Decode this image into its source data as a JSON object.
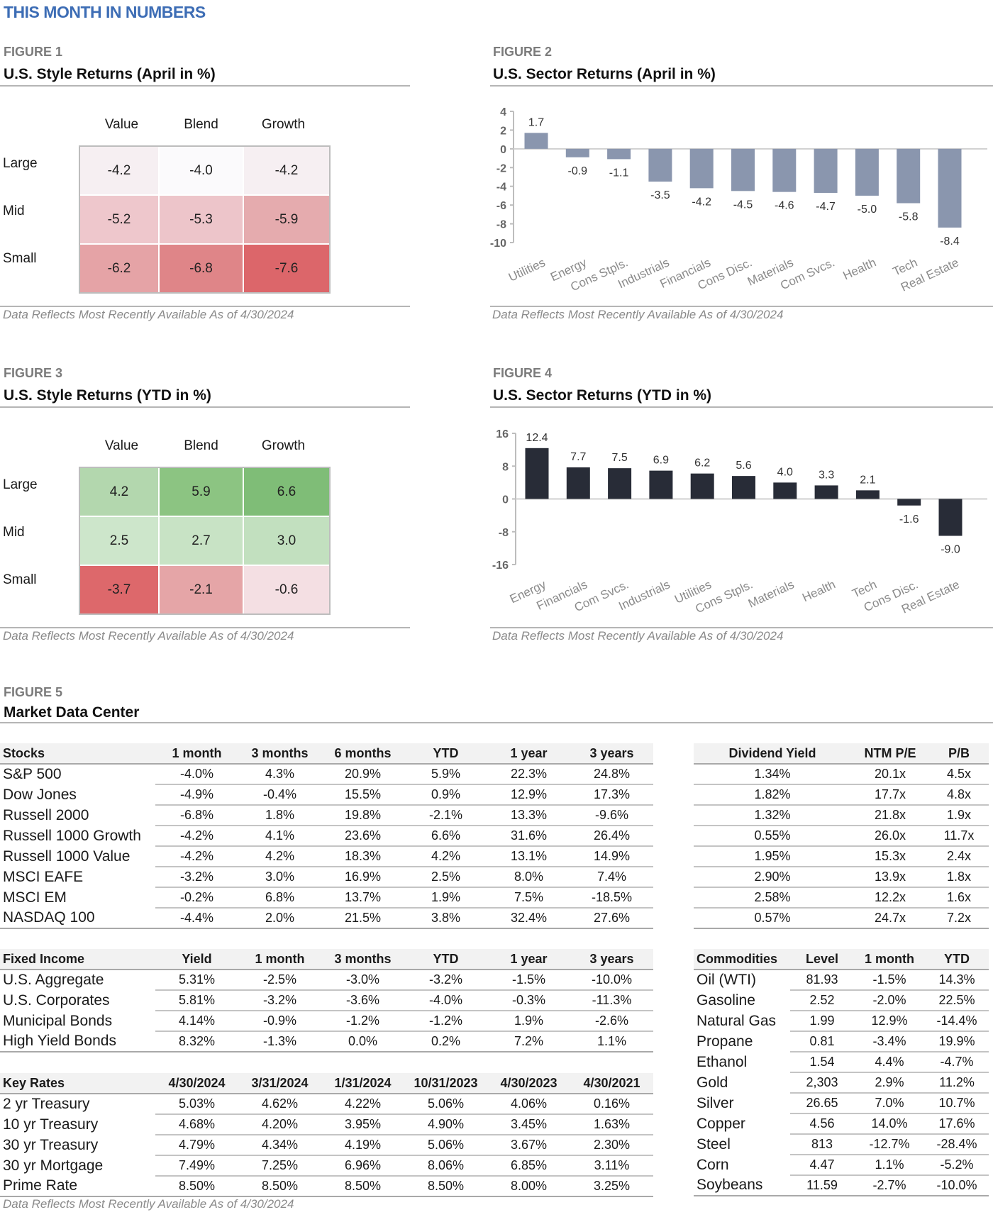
{
  "page_title": "THIS MONTH IN NUMBERS",
  "footnote": "Data Reflects Most Recently Available As of 4/30/2024",
  "figure1": {
    "label": "FIGURE 1",
    "title": "U.S. Style Returns (April in %)",
    "columns": [
      "Value",
      "Blend",
      "Growth"
    ],
    "rows": [
      "Large",
      "Mid",
      "Small"
    ],
    "values": [
      [
        "-4.2",
        "-4.0",
        "-4.2"
      ],
      [
        "-5.2",
        "-5.3",
        "-5.9"
      ],
      [
        "-6.2",
        "-6.8",
        "-7.6"
      ]
    ],
    "colors": [
      [
        "#f6eff2",
        "#fbfafc",
        "#f6eff2"
      ],
      [
        "#eec7cc",
        "#edc5ca",
        "#e5abae"
      ],
      [
        "#e5a3a6",
        "#df8588",
        "#dc666a"
      ]
    ]
  },
  "figure3": {
    "label": "FIGURE 3",
    "title": "U.S. Style Returns (YTD in %)",
    "columns": [
      "Value",
      "Blend",
      "Growth"
    ],
    "rows": [
      "Large",
      "Mid",
      "Small"
    ],
    "values": [
      [
        "4.2",
        "5.9",
        "6.6"
      ],
      [
        "2.5",
        "2.7",
        "3.0"
      ],
      [
        "-3.7",
        "-2.1",
        "-0.6"
      ]
    ],
    "colors": [
      [
        "#b3d7ae",
        "#8cc482",
        "#7fbd77"
      ],
      [
        "#cde6cb",
        "#c8e3c5",
        "#c2e0bf"
      ],
      [
        "#dd686b",
        "#e5a5a7",
        "#f4dfe3"
      ]
    ]
  },
  "figure2": {
    "label": "FIGURE 2",
    "title": "U.S. Sector Returns (April in %)"
  },
  "figure4": {
    "label": "FIGURE 4",
    "title": "U.S. Sector Returns (YTD in %)"
  },
  "chart_data": [
    {
      "type": "bar",
      "title": "U.S. Sector Returns (April in %)",
      "categories": [
        "Utilities",
        "Energy",
        "Cons Stpls.",
        "Industrials",
        "Financials",
        "Cons Disc.",
        "Materials",
        "Com Svcs.",
        "Health",
        "Tech",
        "Real Estate"
      ],
      "values": [
        1.7,
        -0.9,
        -1.1,
        -3.5,
        -4.2,
        -4.5,
        -4.6,
        -4.7,
        -5.0,
        -5.8,
        -8.4
      ],
      "ylim": [
        -10,
        4
      ],
      "yticks": [
        4,
        2,
        0,
        -2,
        -4,
        -6,
        -8,
        -10
      ],
      "color": "#8a96ae",
      "grid": false
    },
    {
      "type": "bar",
      "title": "U.S. Sector Returns (YTD in %)",
      "categories": [
        "Energy",
        "Financials",
        "Com Svcs.",
        "Industrials",
        "Utilities",
        "Cons Stpls.",
        "Materials",
        "Health",
        "Tech",
        "Cons Disc.",
        "Real Estate"
      ],
      "values": [
        12.4,
        7.7,
        7.5,
        6.9,
        6.2,
        5.6,
        4.0,
        3.3,
        2.1,
        -1.6,
        -9.0
      ],
      "ylim": [
        -16,
        16
      ],
      "yticks": [
        16,
        8,
        0,
        -8,
        -16
      ],
      "color": "#282c37",
      "grid": false
    }
  ],
  "figure5": {
    "label": "FIGURE 5",
    "title": "Market Data Center",
    "stocks": {
      "headers": [
        "Stocks",
        "1 month",
        "3 months",
        "6 months",
        "YTD",
        "1 year",
        "3 years"
      ],
      "rows": [
        [
          "S&P 500",
          "-4.0%",
          "4.3%",
          "20.9%",
          "5.9%",
          "22.3%",
          "24.8%"
        ],
        [
          "Dow Jones",
          "-4.9%",
          "-0.4%",
          "15.5%",
          "0.9%",
          "12.9%",
          "17.3%"
        ],
        [
          "Russell 2000",
          "-6.8%",
          "1.8%",
          "19.8%",
          "-2.1%",
          "13.3%",
          "-9.6%"
        ],
        [
          "Russell 1000 Growth",
          "-4.2%",
          "4.1%",
          "23.6%",
          "6.6%",
          "31.6%",
          "26.4%"
        ],
        [
          "Russell 1000 Value",
          "-4.2%",
          "4.2%",
          "18.3%",
          "4.2%",
          "13.1%",
          "14.9%"
        ],
        [
          "MSCI EAFE",
          "-3.2%",
          "3.0%",
          "16.9%",
          "2.5%",
          "8.0%",
          "7.4%"
        ],
        [
          "MSCI EM",
          "-0.2%",
          "6.8%",
          "13.7%",
          "1.9%",
          "7.5%",
          "-18.5%"
        ],
        [
          "NASDAQ 100",
          "-4.4%",
          "2.0%",
          "21.5%",
          "3.8%",
          "32.4%",
          "27.6%"
        ]
      ]
    },
    "valuation": {
      "headers": [
        "Dividend Yield",
        "NTM P/E",
        "P/B"
      ],
      "rows": [
        [
          "1.34%",
          "20.1x",
          "4.5x"
        ],
        [
          "1.82%",
          "17.7x",
          "4.8x"
        ],
        [
          "1.32%",
          "21.8x",
          "1.9x"
        ],
        [
          "0.55%",
          "26.0x",
          "11.7x"
        ],
        [
          "1.95%",
          "15.3x",
          "2.4x"
        ],
        [
          "2.90%",
          "13.9x",
          "1.8x"
        ],
        [
          "2.58%",
          "12.2x",
          "1.6x"
        ],
        [
          "0.57%",
          "24.7x",
          "7.2x"
        ]
      ]
    },
    "fixed_income": {
      "headers": [
        "Fixed Income",
        "Yield",
        "1 month",
        "3 months",
        "YTD",
        "1 year",
        "3 years"
      ],
      "rows": [
        [
          "U.S. Aggregate",
          "5.31%",
          "-2.5%",
          "-3.0%",
          "-3.2%",
          "-1.5%",
          "-10.0%"
        ],
        [
          "U.S. Corporates",
          "5.81%",
          "-3.2%",
          "-3.6%",
          "-4.0%",
          "-0.3%",
          "-11.3%"
        ],
        [
          "Municipal Bonds",
          "4.14%",
          "-0.9%",
          "-1.2%",
          "-1.2%",
          "1.9%",
          "-2.6%"
        ],
        [
          "High Yield Bonds",
          "8.32%",
          "-1.3%",
          "0.0%",
          "0.2%",
          "7.2%",
          "1.1%"
        ]
      ]
    },
    "key_rates": {
      "headers": [
        "Key Rates",
        "4/30/2024",
        "3/31/2024",
        "1/31/2024",
        "10/31/2023",
        "4/30/2023",
        "4/30/2021"
      ],
      "rows": [
        [
          "2 yr Treasury",
          "5.03%",
          "4.62%",
          "4.22%",
          "5.06%",
          "4.06%",
          "0.16%"
        ],
        [
          "10 yr Treasury",
          "4.68%",
          "4.20%",
          "3.95%",
          "4.90%",
          "3.45%",
          "1.63%"
        ],
        [
          "30 yr Treasury",
          "4.79%",
          "4.34%",
          "4.19%",
          "5.06%",
          "3.67%",
          "2.30%"
        ],
        [
          "30 yr Mortgage",
          "7.49%",
          "7.25%",
          "6.96%",
          "8.06%",
          "6.85%",
          "3.11%"
        ],
        [
          "Prime Rate",
          "8.50%",
          "8.50%",
          "8.50%",
          "8.50%",
          "8.00%",
          "3.25%"
        ]
      ]
    },
    "commodities": {
      "headers": [
        "Commodities",
        "Level",
        "1 month",
        "YTD"
      ],
      "rows": [
        [
          "Oil (WTI)",
          "81.93",
          "-1.5%",
          "14.3%"
        ],
        [
          "Gasoline",
          "2.52",
          "-2.0%",
          "22.5%"
        ],
        [
          "Natural Gas",
          "1.99",
          "12.9%",
          "-14.4%"
        ],
        [
          "Propane",
          "0.81",
          "-3.4%",
          "19.9%"
        ],
        [
          "Ethanol",
          "1.54",
          "4.4%",
          "-4.7%"
        ],
        [
          "Gold",
          "2,303",
          "2.9%",
          "11.2%"
        ],
        [
          "Silver",
          "26.65",
          "7.0%",
          "10.7%"
        ],
        [
          "Copper",
          "4.56",
          "14.0%",
          "17.6%"
        ],
        [
          "Steel",
          "813",
          "-12.7%",
          "-28.4%"
        ],
        [
          "Corn",
          "4.47",
          "1.1%",
          "-5.2%"
        ],
        [
          "Soybeans",
          "11.59",
          "-2.7%",
          "-10.0%"
        ]
      ]
    }
  }
}
